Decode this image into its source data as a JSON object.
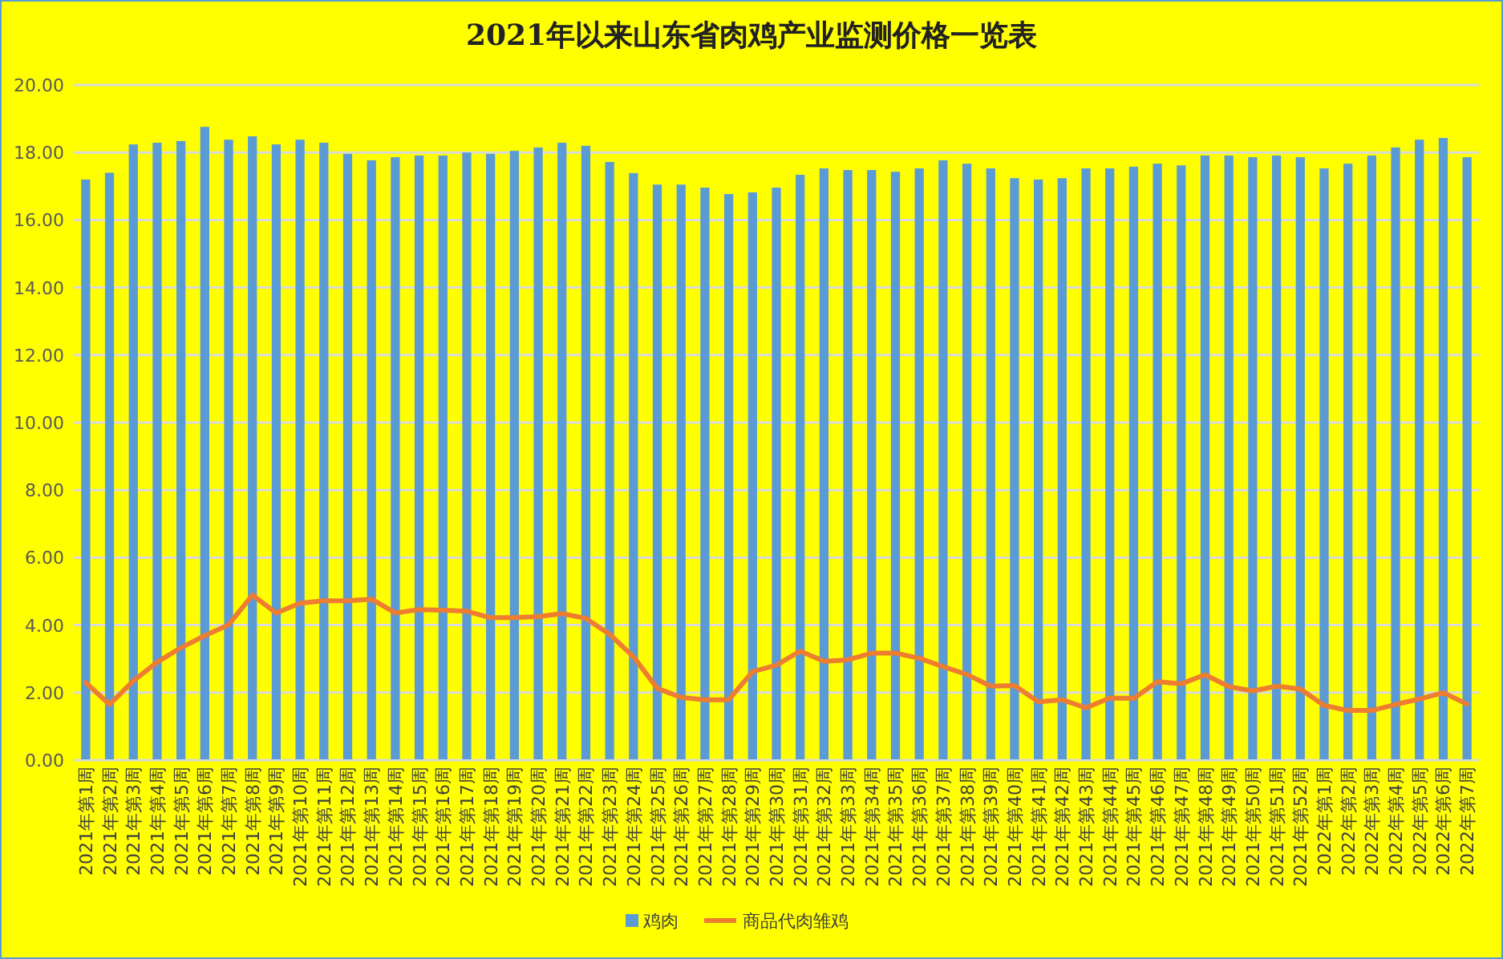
{
  "chart_data": {
    "type": "bar",
    "title": "2021年以来山东省肉鸡产业监测价格一览表",
    "categories": [
      "2021年第1周",
      "2021年第2周",
      "2021年第3周",
      "2021年第4周",
      "2021年第5周",
      "2021年第6周",
      "2021年第7周",
      "2021年第8周",
      "2021年第9周",
      "2021年第10周",
      "2021年第11周",
      "2021年第12周",
      "2021年第13周",
      "2021年第14周",
      "2021年第15周",
      "2021年第16周",
      "2021年第17周",
      "2021年第18周",
      "2021年第19周",
      "2021年第20周",
      "2021年第21周",
      "2021年第22周",
      "2021年第23周",
      "2021年第24周",
      "2021年第25周",
      "2021年第26周",
      "2021年第27周",
      "2021年第28周",
      "2021年第29周",
      "2021年第30周",
      "2021年第31周",
      "2021年第32周",
      "2021年第33周",
      "2021年第34周",
      "2021年第35周",
      "2021年第36周",
      "2021年第37周",
      "2021年第38周",
      "2021年第39周",
      "2021年第40周",
      "2021年第41周",
      "2021年第42周",
      "2021年第43周",
      "2021年第44周",
      "2021年第45周",
      "2021年第46周",
      "2021年第47周",
      "2021年第48周",
      "2021年第49周",
      "2021年第50周",
      "2021年第51周",
      "2021年第52周",
      "2022年第1周",
      "2022年第2周",
      "2022年第3周",
      "2022年第4周",
      "2022年第5周",
      "2022年第6周",
      "2022年第7周"
    ],
    "series": [
      {
        "name": "鸡肉",
        "color": "#5b9bd5",
        "values": [
          17.2,
          17.4,
          18.24,
          18.29,
          18.34,
          18.76,
          18.38,
          18.48,
          18.24,
          18.38,
          18.29,
          17.96,
          17.77,
          17.86,
          17.91,
          17.91,
          18.0,
          17.96,
          18.05,
          18.15,
          18.29,
          18.2,
          17.72,
          17.39,
          17.05,
          17.05,
          16.96,
          16.77,
          16.82,
          16.96,
          17.34,
          17.53,
          17.48,
          17.48,
          17.43,
          17.53,
          17.77,
          17.67,
          17.53,
          17.24,
          17.2,
          17.24,
          17.53,
          17.53,
          17.58,
          17.67,
          17.62,
          17.91,
          17.91,
          17.86,
          17.91,
          17.86,
          17.53,
          17.67,
          17.91,
          18.15,
          18.38,
          18.43,
          17.86
        ]
      },
      {
        "name": "商品代肉雏鸡",
        "type": "line",
        "color": "#ed7d31",
        "values": [
          2.3,
          1.65,
          2.35,
          2.9,
          3.33,
          3.69,
          4.01,
          4.89,
          4.36,
          4.65,
          4.72,
          4.72,
          4.77,
          4.36,
          4.46,
          4.44,
          4.41,
          4.22,
          4.22,
          4.25,
          4.34,
          4.2,
          3.73,
          3.06,
          2.13,
          1.86,
          1.79,
          1.79,
          2.62,
          2.81,
          3.23,
          2.93,
          2.97,
          3.17,
          3.17,
          3.02,
          2.77,
          2.54,
          2.19,
          2.21,
          1.73,
          1.79,
          1.55,
          1.84,
          1.83,
          2.32,
          2.26,
          2.53,
          2.18,
          2.05,
          2.19,
          2.11,
          1.62,
          1.47,
          1.47,
          1.65,
          1.81,
          2.0,
          1.66
        ]
      }
    ],
    "ylim": [
      0,
      20
    ],
    "yticks": [
      {
        "value": 0,
        "label": "0.00"
      },
      {
        "value": 2,
        "label": "2.00"
      },
      {
        "value": 4,
        "label": "4.00"
      },
      {
        "value": 6,
        "label": "6.00"
      },
      {
        "value": 8,
        "label": "8.00"
      },
      {
        "value": 10,
        "label": "10.00"
      },
      {
        "value": 12,
        "label": "12.00"
      },
      {
        "value": 14,
        "label": "14.00"
      },
      {
        "value": 16,
        "label": "16.00"
      },
      {
        "value": 18,
        "label": "18.00"
      },
      {
        "value": 20,
        "label": "20.00"
      }
    ],
    "grid": "y",
    "legend": "bottom"
  }
}
